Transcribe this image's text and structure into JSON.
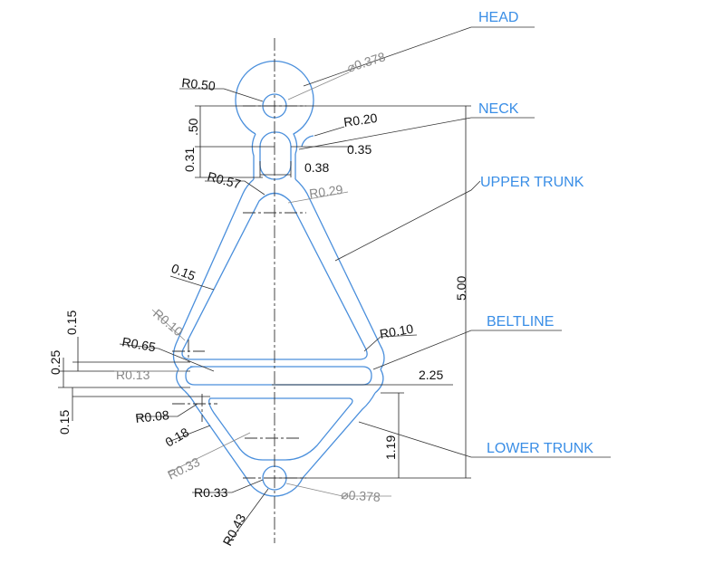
{
  "callouts": {
    "head": "HEAD",
    "neck": "NECK",
    "upper_trunk": "UPPER TRUNK",
    "beltline": "BELTLINE",
    "lower_trunk": "LOWER TRUNK"
  },
  "dimensions": {
    "head_hole_dia": "⌀0.378",
    "head_radius": "R0.50",
    "neck_radius": "R0.20",
    "neck_height": ".50",
    "slot_width": "0.35",
    "slot_height": "0.31",
    "slot_inner_width": "0.38",
    "shoulder_radius": "R0.57",
    "upper_inner_radius": "R0.29",
    "upper_wall": "0.15",
    "overall_height": "5.00",
    "left_inner_radius": "R0.10",
    "right_inner_radius": "R0.10",
    "belt_top_wall": "0.15",
    "belt_end_radius": "R0.65",
    "belt_slot_height": "0.25",
    "belt_slot_radius": "R0.13",
    "belt_width": "2.25",
    "belt_bottom_wall": "0.15",
    "lower_corner_radius": "R0.08",
    "lower_offset": "0.18",
    "lower_inner_radius": "R0.33",
    "foot_radius_inner": "R0.33",
    "foot_radius_outer": "R0.43",
    "lower_trunk_height": "1.19",
    "foot_hole_dia": "⌀0.378"
  },
  "colors": {
    "part_outline": "#4a8fdc",
    "callout_text": "#3a8ee6",
    "dimension_text": "#111111",
    "reference_dimension_text": "#888888"
  }
}
